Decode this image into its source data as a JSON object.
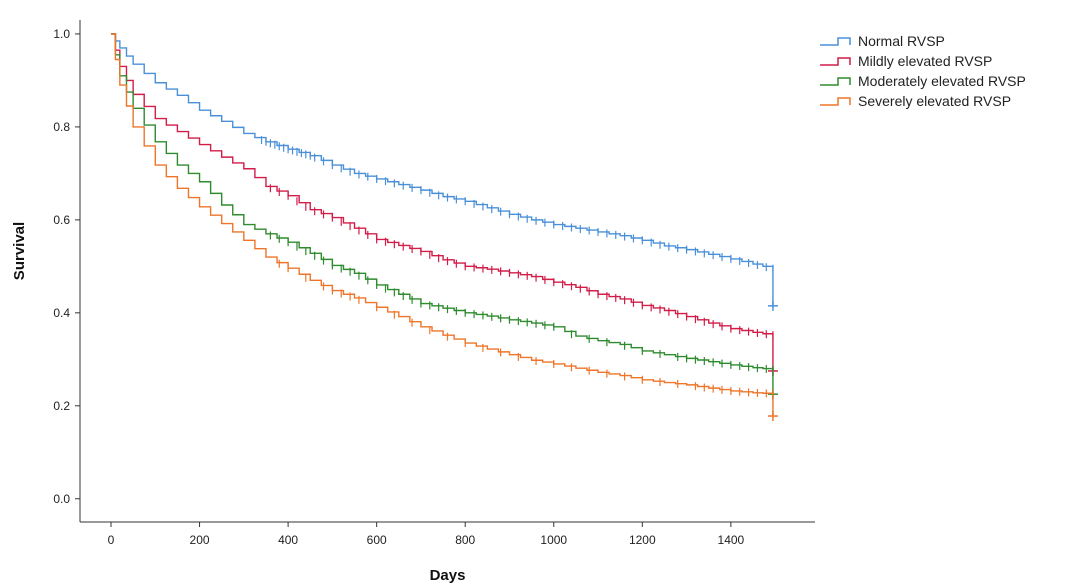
{
  "chart_data": {
    "type": "line",
    "xlabel": "Days",
    "ylabel": "Survival",
    "xlim": [
      -70,
      1590
    ],
    "ylim": [
      -0.05,
      1.03
    ],
    "x_ticks": [
      0,
      200,
      400,
      600,
      800,
      1000,
      1200,
      1400
    ],
    "y_ticks": [
      0.0,
      0.2,
      0.4,
      0.6,
      0.8,
      1.0
    ],
    "x_tick_labels": [
      "0",
      "200",
      "400",
      "600",
      "800",
      "1000",
      "1200",
      "1400"
    ],
    "y_tick_labels": [
      "0.0",
      "0.2",
      "0.4",
      "0.6",
      "0.8",
      "1.0"
    ],
    "grid": false,
    "legend_position": "top-right",
    "series": [
      {
        "name": "Normal RVSP",
        "color": "#4a90d9",
        "points": [
          [
            0,
            1.0
          ],
          [
            20,
            0.97
          ],
          [
            50,
            0.935
          ],
          [
            100,
            0.895
          ],
          [
            150,
            0.868
          ],
          [
            200,
            0.836
          ],
          [
            250,
            0.812
          ],
          [
            300,
            0.786
          ],
          [
            350,
            0.768
          ],
          [
            400,
            0.752
          ],
          [
            450,
            0.738
          ],
          [
            500,
            0.718
          ],
          [
            550,
            0.7
          ],
          [
            600,
            0.688
          ],
          [
            650,
            0.676
          ],
          [
            700,
            0.664
          ],
          [
            750,
            0.65
          ],
          [
            800,
            0.64
          ],
          [
            850,
            0.626
          ],
          [
            900,
            0.612
          ],
          [
            950,
            0.6
          ],
          [
            1000,
            0.59
          ],
          [
            1050,
            0.582
          ],
          [
            1100,
            0.574
          ],
          [
            1150,
            0.566
          ],
          [
            1200,
            0.556
          ],
          [
            1250,
            0.544
          ],
          [
            1300,
            0.536
          ],
          [
            1350,
            0.526
          ],
          [
            1400,
            0.516
          ],
          [
            1450,
            0.505
          ],
          [
            1495,
            0.495
          ]
        ],
        "censor_x": [
          340,
          350,
          360,
          370,
          380,
          390,
          400,
          410,
          420,
          430,
          440,
          450,
          460,
          480,
          500,
          520,
          540,
          560,
          580,
          600,
          620,
          640,
          660,
          680,
          700,
          720,
          740,
          760,
          780,
          800,
          820,
          840,
          860,
          880,
          900,
          920,
          940,
          960,
          980,
          1000,
          1020,
          1040,
          1060,
          1080,
          1100,
          1120,
          1140,
          1160,
          1180,
          1200,
          1220,
          1240,
          1260,
          1280,
          1300,
          1320,
          1340,
          1360,
          1380,
          1400,
          1420,
          1440,
          1460,
          1480,
          1495
        ],
        "final_drop_to": 0.415
      },
      {
        "name": "Mildly elevated RVSP",
        "color": "#d11d48",
        "points": [
          [
            0,
            1.0
          ],
          [
            20,
            0.93
          ],
          [
            50,
            0.87
          ],
          [
            100,
            0.818
          ],
          [
            150,
            0.79
          ],
          [
            200,
            0.762
          ],
          [
            250,
            0.735
          ],
          [
            300,
            0.71
          ],
          [
            350,
            0.672
          ],
          [
            400,
            0.652
          ],
          [
            450,
            0.622
          ],
          [
            500,
            0.605
          ],
          [
            550,
            0.582
          ],
          [
            600,
            0.558
          ],
          [
            650,
            0.545
          ],
          [
            700,
            0.532
          ],
          [
            750,
            0.514
          ],
          [
            800,
            0.5
          ],
          [
            850,
            0.494
          ],
          [
            900,
            0.486
          ],
          [
            950,
            0.478
          ],
          [
            1000,
            0.466
          ],
          [
            1050,
            0.455
          ],
          [
            1100,
            0.44
          ],
          [
            1150,
            0.43
          ],
          [
            1200,
            0.416
          ],
          [
            1250,
            0.405
          ],
          [
            1300,
            0.392
          ],
          [
            1350,
            0.378
          ],
          [
            1400,
            0.366
          ],
          [
            1450,
            0.358
          ],
          [
            1495,
            0.352
          ]
        ],
        "censor_x": [
          360,
          380,
          400,
          420,
          440,
          460,
          480,
          500,
          520,
          540,
          560,
          580,
          600,
          620,
          640,
          660,
          680,
          700,
          720,
          740,
          760,
          780,
          800,
          820,
          840,
          860,
          880,
          900,
          920,
          940,
          960,
          980,
          1000,
          1020,
          1040,
          1060,
          1080,
          1100,
          1120,
          1140,
          1160,
          1180,
          1200,
          1220,
          1240,
          1260,
          1280,
          1300,
          1320,
          1340,
          1360,
          1380,
          1400,
          1420,
          1440,
          1460,
          1480,
          1495
        ],
        "final_drop_to": 0.275
      },
      {
        "name": "Moderately elevated RVSP",
        "color": "#2e8b2e",
        "points": [
          [
            0,
            1.0
          ],
          [
            20,
            0.91
          ],
          [
            50,
            0.84
          ],
          [
            100,
            0.768
          ],
          [
            150,
            0.718
          ],
          [
            200,
            0.682
          ],
          [
            250,
            0.632
          ],
          [
            300,
            0.59
          ],
          [
            350,
            0.57
          ],
          [
            400,
            0.552
          ],
          [
            450,
            0.528
          ],
          [
            500,
            0.502
          ],
          [
            550,
            0.485
          ],
          [
            600,
            0.46
          ],
          [
            650,
            0.44
          ],
          [
            700,
            0.42
          ],
          [
            750,
            0.41
          ],
          [
            800,
            0.4
          ],
          [
            850,
            0.393
          ],
          [
            900,
            0.385
          ],
          [
            950,
            0.378
          ],
          [
            1000,
            0.37
          ],
          [
            1050,
            0.35
          ],
          [
            1100,
            0.34
          ],
          [
            1150,
            0.332
          ],
          [
            1200,
            0.318
          ],
          [
            1250,
            0.31
          ],
          [
            1300,
            0.302
          ],
          [
            1350,
            0.295
          ],
          [
            1400,
            0.288
          ],
          [
            1450,
            0.282
          ],
          [
            1495,
            0.278
          ]
        ],
        "censor_x": [
          360,
          380,
          400,
          420,
          440,
          460,
          480,
          500,
          520,
          540,
          560,
          580,
          600,
          620,
          640,
          660,
          680,
          700,
          720,
          740,
          760,
          780,
          800,
          820,
          840,
          860,
          880,
          900,
          920,
          940,
          960,
          980,
          1000,
          1040,
          1080,
          1120,
          1160,
          1200,
          1240,
          1280,
          1300,
          1320,
          1340,
          1360,
          1380,
          1400,
          1420,
          1440,
          1460,
          1480,
          1495
        ],
        "final_drop_to": 0.225
      },
      {
        "name": "Severely elevated RVSP",
        "color": "#ee7529",
        "points": [
          [
            0,
            1.0
          ],
          [
            20,
            0.89
          ],
          [
            50,
            0.8
          ],
          [
            100,
            0.718
          ],
          [
            150,
            0.668
          ],
          [
            200,
            0.628
          ],
          [
            250,
            0.592
          ],
          [
            300,
            0.556
          ],
          [
            350,
            0.52
          ],
          [
            400,
            0.496
          ],
          [
            450,
            0.47
          ],
          [
            500,
            0.448
          ],
          [
            550,
            0.432
          ],
          [
            600,
            0.412
          ],
          [
            650,
            0.392
          ],
          [
            700,
            0.37
          ],
          [
            750,
            0.352
          ],
          [
            800,
            0.335
          ],
          [
            850,
            0.322
          ],
          [
            900,
            0.31
          ],
          [
            950,
            0.298
          ],
          [
            1000,
            0.29
          ],
          [
            1050,
            0.281
          ],
          [
            1100,
            0.272
          ],
          [
            1150,
            0.265
          ],
          [
            1200,
            0.256
          ],
          [
            1250,
            0.25
          ],
          [
            1300,
            0.245
          ],
          [
            1350,
            0.238
          ],
          [
            1400,
            0.232
          ],
          [
            1450,
            0.228
          ],
          [
            1495,
            0.226
          ]
        ],
        "censor_x": [
          380,
          400,
          440,
          480,
          500,
          520,
          540,
          560,
          600,
          640,
          680,
          720,
          760,
          800,
          840,
          880,
          920,
          960,
          1000,
          1040,
          1080,
          1120,
          1160,
          1200,
          1240,
          1280,
          1320,
          1340,
          1360,
          1380,
          1400,
          1420,
          1440,
          1460,
          1480,
          1495
        ],
        "final_drop_to": 0.178
      }
    ]
  }
}
